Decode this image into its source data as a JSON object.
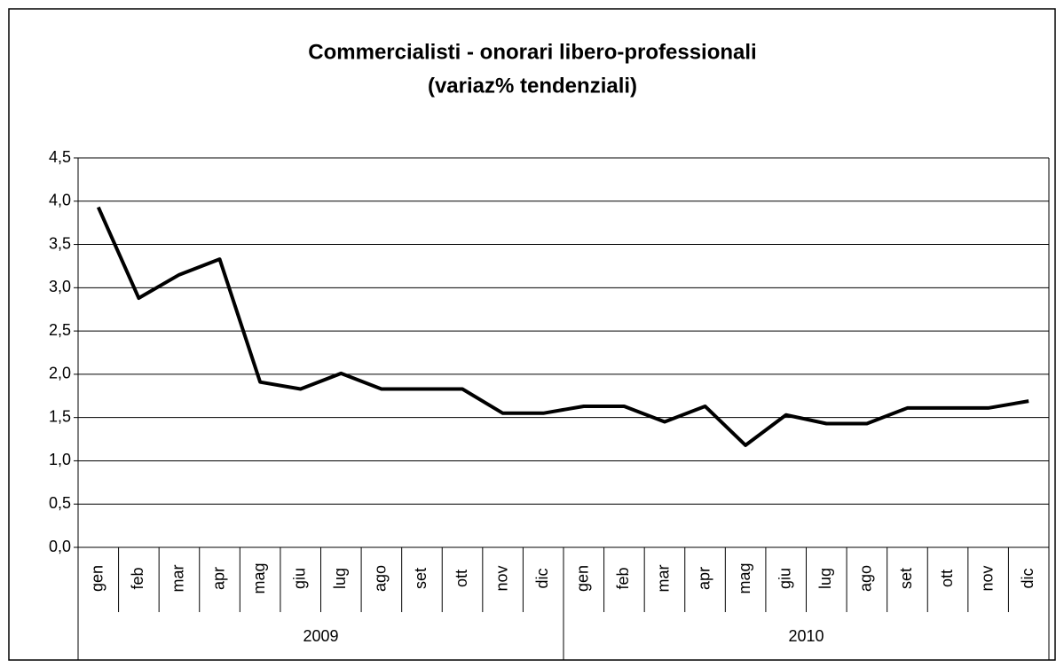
{
  "chart_data": {
    "type": "line",
    "title": "Commercialisti - onorari libero-professionali",
    "subtitle": "(variaz% tendenziali)",
    "categories": [
      "gen",
      "feb",
      "mar",
      "apr",
      "mag",
      "giu",
      "lug",
      "ago",
      "set",
      "ott",
      "nov",
      "dic",
      "gen",
      "feb",
      "mar",
      "apr",
      "mag",
      "giu",
      "lug",
      "ago",
      "set",
      "ott",
      "nov",
      "dic"
    ],
    "category_groups": [
      "2009",
      "2010"
    ],
    "series": [
      {
        "color": "#000000",
        "values": [
          3.93,
          2.88,
          3.15,
          3.33,
          1.91,
          1.83,
          2.01,
          1.83,
          1.83,
          1.83,
          1.55,
          1.55,
          1.63,
          1.63,
          1.45,
          1.63,
          1.18,
          1.53,
          1.43,
          1.43,
          1.61,
          1.61,
          1.61,
          1.69
        ]
      }
    ],
    "ylim": [
      0,
      4.5
    ],
    "yticks": [
      {
        "value": 0,
        "label": "0,0"
      },
      {
        "value": 0.5,
        "label": "0,5"
      },
      {
        "value": 1,
        "label": "1,0"
      },
      {
        "value": 1.5,
        "label": "1,5"
      },
      {
        "value": 2,
        "label": "2,0"
      },
      {
        "value": 2.5,
        "label": "2,5"
      },
      {
        "value": 3,
        "label": "3,0"
      },
      {
        "value": 3.5,
        "label": "3,5"
      },
      {
        "value": 4,
        "label": "4,0"
      },
      {
        "value": 4.5,
        "label": "4,5"
      }
    ],
    "grid": true
  }
}
